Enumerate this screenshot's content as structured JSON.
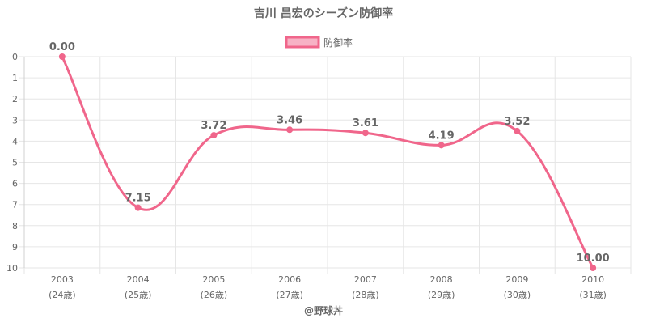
{
  "chart_data": {
    "type": "line",
    "title": "吉川 昌宏のシーズン防御率",
    "legend": {
      "position": "top",
      "label": "防御率"
    },
    "x": [
      "2003",
      "2004",
      "2005",
      "2006",
      "2007",
      "2008",
      "2009",
      "2010"
    ],
    "x_sublabels": [
      "(24歳)",
      "(25歳)",
      "(26歳)",
      "(27歳)",
      "(28歳)",
      "(29歳)",
      "(30歳)",
      "(31歳)"
    ],
    "series": [
      {
        "name": "防御率",
        "values": [
          0.0,
          7.15,
          3.72,
          3.46,
          3.61,
          4.19,
          3.52,
          10.0
        ],
        "labels": [
          "0.00",
          "7.15",
          "3.72",
          "3.46",
          "3.61",
          "4.19",
          "3.52",
          "10.00"
        ],
        "color": "#f0668b"
      }
    ],
    "ylim": [
      0,
      10
    ],
    "y_reversed": true,
    "y_ticks": [
      "0",
      "1",
      "2",
      "3",
      "4",
      "5",
      "6",
      "7",
      "8",
      "9",
      "10"
    ],
    "grid": true,
    "credit": "@野球丼"
  }
}
